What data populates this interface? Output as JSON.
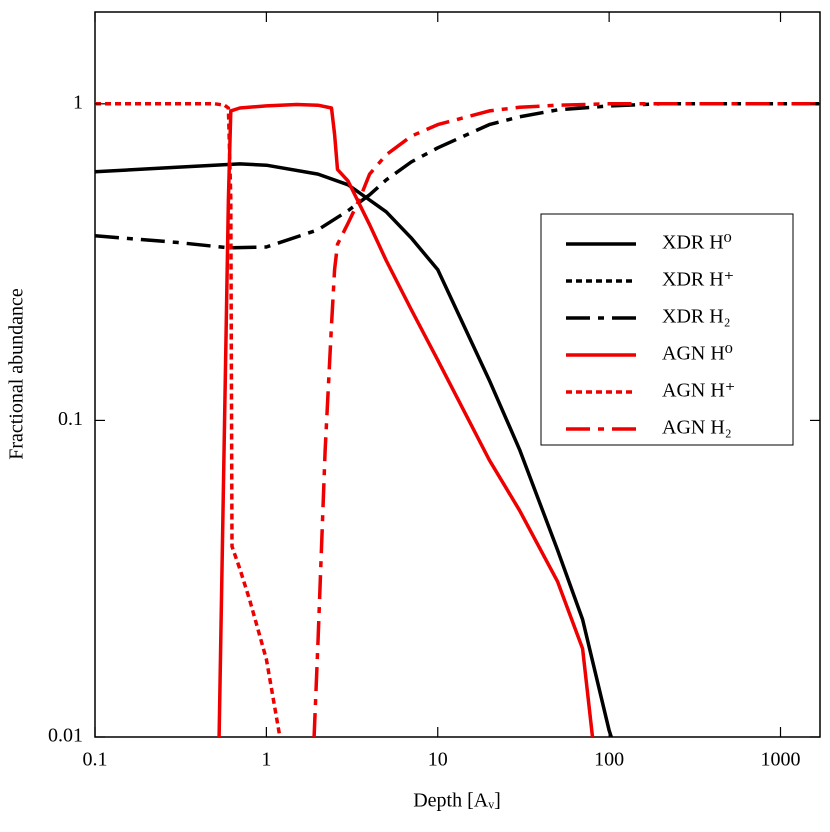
{
  "chart_data": {
    "type": "line",
    "xlabel": "Depth [Aᵥ]",
    "ylabel": "Fractional abundance",
    "xscale": "log",
    "yscale": "log",
    "xlim": [
      0.1,
      1700
    ],
    "ylim": [
      0.01,
      1.95
    ],
    "xticks": [
      0.1,
      1,
      10,
      100,
      1000
    ],
    "yticks": [
      0.01,
      0.1,
      1
    ],
    "legend_position": "right",
    "series": [
      {
        "name": "XDR H⁰",
        "color": "#000000",
        "dash": "solid",
        "x": [
          0.1,
          0.3,
          0.7,
          1,
          2,
          3,
          4,
          5,
          7,
          10,
          20,
          30,
          50,
          70,
          100,
          103
        ],
        "values": [
          0.61,
          0.63,
          0.646,
          0.64,
          0.6,
          0.555,
          0.497,
          0.456,
          0.377,
          0.299,
          0.134,
          0.081,
          0.039,
          0.0235,
          0.0105,
          0.01
        ]
      },
      {
        "name": "XDR H⁺",
        "color": "#000000",
        "dash": "dotted",
        "x": [],
        "values": []
      },
      {
        "name": "XDR H₂",
        "color": "#000000",
        "dash": "dashdot",
        "x": [
          0.1,
          0.3,
          0.6,
          1,
          2,
          3,
          4,
          5,
          7,
          10,
          20,
          30,
          50,
          100,
          200,
          1700
        ],
        "values": [
          0.383,
          0.365,
          0.351,
          0.353,
          0.4,
          0.46,
          0.516,
          0.575,
          0.655,
          0.726,
          0.86,
          0.91,
          0.957,
          0.985,
          1,
          1
        ]
      },
      {
        "name": "AGN H⁰",
        "color": "#ee0000",
        "dash": "solid",
        "x": [
          0.53,
          0.6,
          0.62,
          0.7,
          1,
          1.5,
          2,
          2.4,
          2.5,
          2.6,
          3,
          4,
          5,
          7,
          10,
          20,
          30,
          50,
          70,
          80
        ],
        "values": [
          0.01,
          0.5,
          0.95,
          0.97,
          0.985,
          0.995,
          0.99,
          0.97,
          0.8,
          0.62,
          0.57,
          0.415,
          0.32,
          0.224,
          0.155,
          0.075,
          0.052,
          0.031,
          0.019,
          0.01
        ]
      },
      {
        "name": "AGN H⁺",
        "color": "#ee0000",
        "dash": "dotted",
        "x": [
          0.1,
          0.5,
          0.57,
          0.6,
          0.62,
          0.63,
          0.7,
          0.8,
          1,
          1.2
        ],
        "values": [
          1,
          1,
          0.99,
          0.97,
          0.5,
          0.04,
          0.034,
          0.027,
          0.0176,
          0.01
        ]
      },
      {
        "name": "AGN H₂",
        "color": "#ee0000",
        "dash": "dashdot",
        "x": [
          1.9,
          2,
          2.2,
          2.4,
          2.5,
          2.6,
          3,
          3.5,
          4,
          5,
          7,
          10,
          20,
          30,
          50,
          100,
          1700
        ],
        "values": [
          0.01,
          0.02,
          0.08,
          0.2,
          0.3,
          0.36,
          0.42,
          0.5,
          0.6,
          0.69,
          0.79,
          0.86,
          0.95,
          0.975,
          0.99,
          1,
          1
        ]
      }
    ]
  }
}
